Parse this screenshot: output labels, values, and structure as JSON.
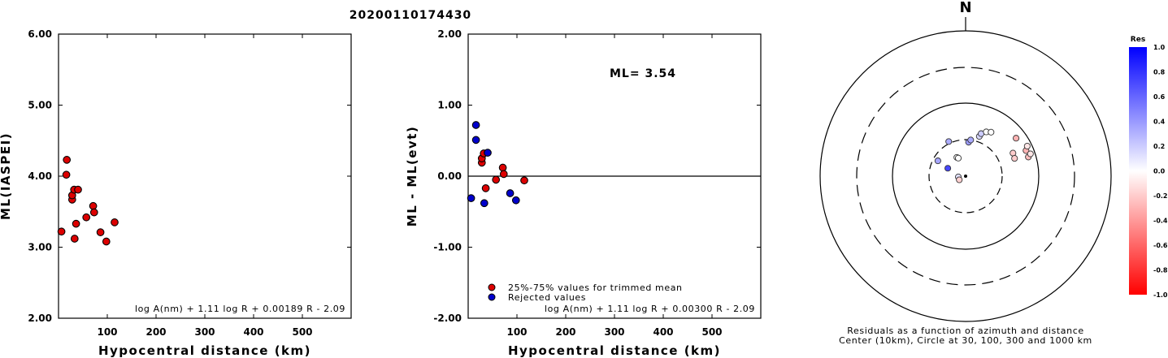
{
  "title": "20200110174430",
  "chart_data": [
    {
      "type": "scatter",
      "ylabel": "ML(IASPEI)",
      "xlabel": "Hypocentral distance (km)",
      "xlim": [
        0,
        600
      ],
      "ylim": [
        2,
        6
      ],
      "xticks": [
        "100",
        "200",
        "300",
        "400",
        "500"
      ],
      "yticks": [
        "2.00",
        "3.00",
        "4.00",
        "5.00",
        "6.00"
      ],
      "formula": "log A(nm) + 1.11 log R + 0.00189 R - 2.09",
      "point_color": "#dd0000",
      "points": [
        {
          "x": 6,
          "y": 3.22
        },
        {
          "x": 17,
          "y": 4.23
        },
        {
          "x": 16,
          "y": 4.02
        },
        {
          "x": 28,
          "y": 3.67
        },
        {
          "x": 28,
          "y": 3.73
        },
        {
          "x": 32,
          "y": 3.81
        },
        {
          "x": 40,
          "y": 3.81
        },
        {
          "x": 33,
          "y": 3.12
        },
        {
          "x": 36,
          "y": 3.33
        },
        {
          "x": 57,
          "y": 3.42
        },
        {
          "x": 71,
          "y": 3.58
        },
        {
          "x": 73,
          "y": 3.49
        },
        {
          "x": 86,
          "y": 3.21
        },
        {
          "x": 98,
          "y": 3.08
        },
        {
          "x": 115,
          "y": 3.35
        }
      ]
    },
    {
      "type": "scatter",
      "ylabel": "ML - ML(evt)",
      "xlabel": "Hypocentral distance (km)",
      "xlim": [
        0,
        600
      ],
      "ylim": [
        -2,
        2
      ],
      "xticks": [
        "100",
        "200",
        "300",
        "400",
        "500"
      ],
      "yticks": [
        "-2.00",
        "-1.00",
        "0.00",
        "1.00",
        "2.00"
      ],
      "annotation": "ML= 3.54",
      "formula": "log A(nm) + 1.11 log R + 0.00300 R - 2.09",
      "legend": [
        {
          "label": "25%-75% values for trimmed mean",
          "color": "#dd0000"
        },
        {
          "label": "Rejected values",
          "color": "#0000cc"
        }
      ],
      "series": [
        {
          "name": "25%-75% values for trimmed mean",
          "color": "#dd0000",
          "points": [
            {
              "x": 28,
              "y": 0.19
            },
            {
              "x": 28,
              "y": 0.25
            },
            {
              "x": 32,
              "y": 0.32
            },
            {
              "x": 36,
              "y": -0.17
            },
            {
              "x": 57,
              "y": -0.05
            },
            {
              "x": 71,
              "y": 0.12
            },
            {
              "x": 73,
              "y": 0.03
            },
            {
              "x": 115,
              "y": -0.06
            }
          ]
        },
        {
          "name": "Rejected values",
          "color": "#0000cc",
          "points": [
            {
              "x": 6,
              "y": -0.31
            },
            {
              "x": 16,
              "y": 0.51
            },
            {
              "x": 16,
              "y": 0.72
            },
            {
              "x": 33,
              "y": -0.38
            },
            {
              "x": 40,
              "y": 0.33
            },
            {
              "x": 86,
              "y": -0.24
            },
            {
              "x": 98,
              "y": -0.34
            }
          ]
        }
      ]
    },
    {
      "type": "polar-scatter",
      "north_label": "N",
      "caption_line1": "Residuals as a function of azimuth and distance",
      "caption_line2": "Center (10km), Circle at 30, 100, 300 and 1000 km",
      "rings_km": [
        30,
        100,
        300,
        1000
      ],
      "colorbar": {
        "title": "Res",
        "min": -1.0,
        "max": 1.0,
        "labels": [
          "1.0",
          "0.8",
          "0.6",
          "0.4",
          "0.2",
          "0.0",
          "-0.2",
          "-0.4",
          "-0.6",
          "-0.8",
          "-1.0"
        ],
        "positive_color": "#0000ff",
        "negative_color": "#ff0000"
      },
      "points": [
        {
          "azimuth": 264,
          "distance_km": 6,
          "res": 0.11
        },
        {
          "azimuth": 294,
          "distance_km": 16,
          "res": 0.72
        },
        {
          "azimuth": 335,
          "distance_km": 17,
          "res": 0.0
        },
        {
          "azimuth": 338,
          "distance_km": 16,
          "res": 0.0
        },
        {
          "azimuth": 299,
          "distance_km": 26,
          "res": 0.35
        },
        {
          "azimuth": 334,
          "distance_km": 32,
          "res": 0.33
        },
        {
          "azimuth": 5,
          "distance_km": 28,
          "res": 0.39
        },
        {
          "azimuth": 8,
          "distance_km": 30,
          "res": 0.33
        },
        {
          "azimuth": 19,
          "distance_km": 36,
          "res": 0.15
        },
        {
          "azimuth": 20,
          "distance_km": 40,
          "res": 0.2
        },
        {
          "azimuth": 25,
          "distance_km": 45,
          "res": 0.0
        },
        {
          "azimuth": 30,
          "distance_km": 48,
          "res": 0.0
        },
        {
          "azimuth": 64,
          "distance_km": 51,
          "res": -0.2
        },
        {
          "azimuth": 70,
          "distance_km": 50,
          "res": -0.2
        },
        {
          "azimuth": 53,
          "distance_km": 72,
          "res": -0.3
        },
        {
          "azimuth": 67,
          "distance_km": 78,
          "res": -0.3
        },
        {
          "azimuth": 73,
          "distance_km": 78,
          "res": -0.25
        },
        {
          "azimuth": 64,
          "distance_km": 86,
          "res": -0.1
        },
        {
          "azimuth": 71,
          "distance_km": 86,
          "res": -0.1
        },
        {
          "azimuth": 240,
          "distance_km": 6,
          "res": -0.18
        }
      ]
    }
  ]
}
